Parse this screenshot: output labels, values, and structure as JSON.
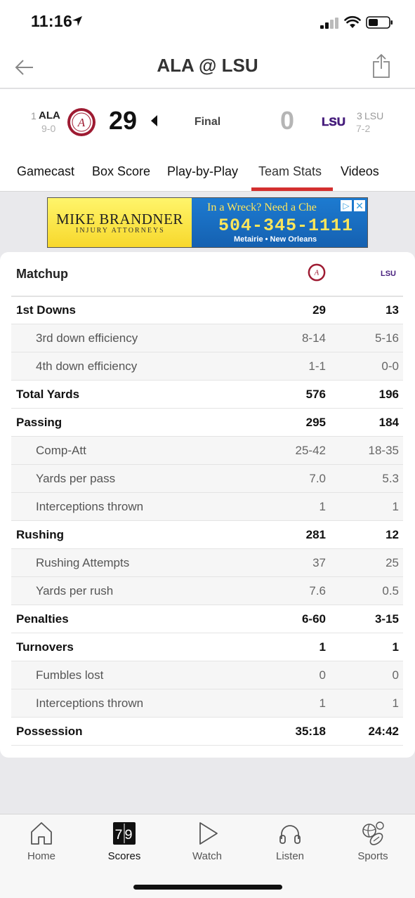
{
  "status_bar": {
    "time": "11:16"
  },
  "nav": {
    "title": "ALA @ LSU"
  },
  "game": {
    "away": {
      "rank": "1",
      "abbr": "ALA",
      "record": "9-0",
      "score": "29"
    },
    "home": {
      "rank": "3",
      "abbr": "LSU",
      "record": "7-2",
      "score": "0",
      "logo_text": "LSU"
    },
    "status": "Final"
  },
  "tabs": [
    {
      "label": "Gamecast"
    },
    {
      "label": "Box Score"
    },
    {
      "label": "Play-by-Play"
    },
    {
      "label": "Team Stats",
      "active": true
    },
    {
      "label": "Videos"
    }
  ],
  "ad": {
    "brand": "MIKE BRANDNER",
    "brand_sub": "INJURY ATTORNEYS",
    "tagline": "In a Wreck? Need a Che",
    "phone": "504-345-1111",
    "locations": "Metairie • New Orleans"
  },
  "matchup": {
    "label": "Matchup",
    "home_logo_text": "LSU",
    "rows": [
      {
        "label": "1st Downs",
        "away": "29",
        "home": "13",
        "type": "main"
      },
      {
        "label": "3rd down efficiency",
        "away": "8-14",
        "home": "5-16",
        "type": "sub"
      },
      {
        "label": "4th down efficiency",
        "away": "1-1",
        "home": "0-0",
        "type": "sub"
      },
      {
        "label": "Total Yards",
        "away": "576",
        "home": "196",
        "type": "main"
      },
      {
        "label": "Passing",
        "away": "295",
        "home": "184",
        "type": "main"
      },
      {
        "label": "Comp-Att",
        "away": "25-42",
        "home": "18-35",
        "type": "sub"
      },
      {
        "label": "Yards per pass",
        "away": "7.0",
        "home": "5.3",
        "type": "sub"
      },
      {
        "label": "Interceptions thrown",
        "away": "1",
        "home": "1",
        "type": "sub"
      },
      {
        "label": "Rushing",
        "away": "281",
        "home": "12",
        "type": "main"
      },
      {
        "label": "Rushing Attempts",
        "away": "37",
        "home": "25",
        "type": "sub"
      },
      {
        "label": "Yards per rush",
        "away": "7.6",
        "home": "0.5",
        "type": "sub"
      },
      {
        "label": "Penalties",
        "away": "6-60",
        "home": "3-15",
        "type": "main"
      },
      {
        "label": "Turnovers",
        "away": "1",
        "home": "1",
        "type": "main"
      },
      {
        "label": "Fumbles lost",
        "away": "0",
        "home": "0",
        "type": "sub"
      },
      {
        "label": "Interceptions thrown",
        "away": "1",
        "home": "1",
        "type": "sub"
      },
      {
        "label": "Possession",
        "away": "35:18",
        "home": "24:42",
        "type": "main"
      }
    ]
  },
  "bottom_tabs": [
    {
      "label": "Home",
      "icon": "home-icon"
    },
    {
      "label": "Scores",
      "icon": "scores-icon",
      "active": true,
      "icon_text": "79"
    },
    {
      "label": "Watch",
      "icon": "play-icon"
    },
    {
      "label": "Listen",
      "icon": "headphones-icon"
    },
    {
      "label": "Sports",
      "icon": "sports-balls-icon"
    }
  ],
  "colors": {
    "accent_red": "#d32f2f",
    "alabama_crimson": "#9e1b32",
    "lsu_purple": "#461d7c",
    "ad_yellow": "#f7d72a",
    "ad_blue": "#1560b0"
  }
}
